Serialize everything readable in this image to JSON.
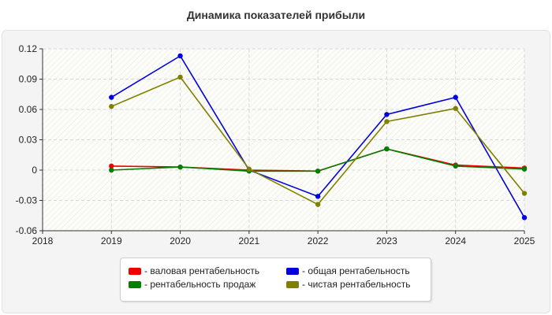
{
  "chart_data": {
    "type": "line",
    "title": "Динамика показателей прибыли",
    "xlabel": "",
    "ylabel": "",
    "x_ticks": [
      "2018",
      "2019",
      "2020",
      "2021",
      "2022",
      "2023",
      "2024",
      "2025"
    ],
    "xlim": [
      2018,
      2025
    ],
    "y_ticks": [
      "0.12",
      "0.09",
      "0.06",
      "0.03",
      "0",
      "-0.03",
      "-0.06"
    ],
    "ylim": [
      -0.06,
      0.12
    ],
    "grid": true,
    "legend_position": "bottom-center",
    "series": [
      {
        "name": "- валовая рентабельность",
        "color": "#ee0000",
        "x": [
          2019,
          2020,
          2021,
          2022,
          2023,
          2024,
          2025
        ],
        "values": [
          0.004,
          0.003,
          0.0,
          -0.001,
          0.021,
          0.005,
          0.002
        ]
      },
      {
        "name": "- общая рентабельность",
        "color": "#0000e0",
        "x": [
          2019,
          2020,
          2021,
          2022,
          2023,
          2024,
          2025
        ],
        "values": [
          0.072,
          0.113,
          0.0,
          -0.026,
          0.055,
          0.072,
          -0.047
        ]
      },
      {
        "name": "- рентабельность продаж",
        "color": "#008000",
        "x": [
          2019,
          2020,
          2021,
          2022,
          2023,
          2024,
          2025
        ],
        "values": [
          0.0,
          0.003,
          -0.001,
          -0.001,
          0.021,
          0.004,
          0.001
        ]
      },
      {
        "name": "- чистая рентабельность",
        "color": "#808000",
        "x": [
          2019,
          2020,
          2021,
          2022,
          2023,
          2024,
          2025
        ],
        "values": [
          0.063,
          0.092,
          0.001,
          -0.034,
          0.048,
          0.061,
          -0.023
        ]
      }
    ]
  }
}
